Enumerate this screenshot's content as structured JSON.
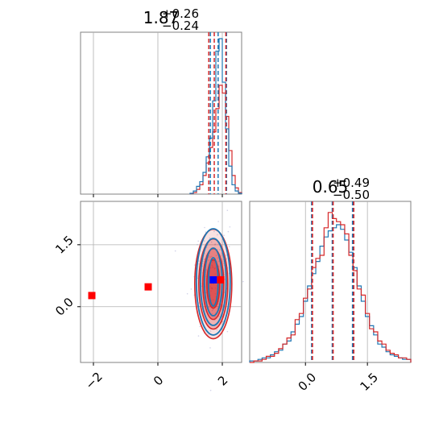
{
  "chart_data": [
    {
      "type": "histogram",
      "panel": "marginal parameter 1",
      "title_value": "1.87",
      "title_upper": "+0.26",
      "title_lower": "−0.24",
      "x_range": [
        -2.4,
        2.6
      ],
      "grid": true,
      "ticks_x": [
        -2,
        0,
        2
      ],
      "blue_quantiles": [
        1.63,
        1.87,
        2.13
      ],
      "red_quantiles": [
        1.58,
        1.75,
        2.11
      ],
      "bins_x": [
        1.05,
        1.15,
        1.25,
        1.35,
        1.45,
        1.55,
        1.65,
        1.75,
        1.85,
        1.95,
        2.05,
        2.15,
        2.25,
        2.35,
        2.45,
        2.55
      ],
      "blue_counts": [
        0.5,
        2,
        5,
        8,
        14,
        24,
        36,
        60,
        92,
        100,
        72,
        42,
        18,
        6,
        2,
        0.5
      ],
      "red_counts": [
        0.3,
        1,
        3,
        6,
        12,
        20,
        30,
        40,
        55,
        70,
        65,
        50,
        28,
        12,
        4,
        1
      ]
    },
    {
      "type": "scatter",
      "panel": "2d posterior",
      "x_range": [
        -2.4,
        2.6
      ],
      "y_range": [
        -1.35,
        2.55
      ],
      "grid": true,
      "ticks_x": [
        "−2",
        "0",
        "2"
      ],
      "ticks_y": [
        "0.0",
        "1.5"
      ],
      "tick_x_values": [
        -2,
        0,
        2
      ],
      "tick_y_values": [
        0.0,
        1.5
      ],
      "blue_contour_center": [
        1.72,
        0.6
      ],
      "red_contour_center": [
        1.72,
        0.55
      ],
      "blue_marker": [
        1.72,
        0.65
      ],
      "red_markers": [
        [
          -2.05,
          0.27
        ],
        [
          -0.3,
          0.48
        ],
        [
          1.95,
          0.65
        ]
      ]
    },
    {
      "type": "histogram",
      "panel": "marginal parameter 2",
      "title_value": "0.65",
      "title_upper": "+0.49",
      "title_lower": "−0.50",
      "x_range": [
        -1.35,
        2.55
      ],
      "grid": true,
      "ticks_x": [
        "0.0",
        "1.5"
      ],
      "tick_x_values": [
        0.0,
        1.5
      ],
      "blue_quantiles": [
        0.15,
        0.65,
        1.14
      ],
      "red_quantiles": [
        0.15,
        0.65,
        1.15
      ],
      "bins_x": [
        -1.3,
        -1.2,
        -1.1,
        -1.0,
        -0.9,
        -0.8,
        -0.7,
        -0.6,
        -0.5,
        -0.4,
        -0.3,
        -0.2,
        -0.1,
        0.0,
        0.1,
        0.2,
        0.3,
        0.4,
        0.5,
        0.6,
        0.7,
        0.8,
        0.9,
        1.0,
        1.1,
        1.2,
        1.3,
        1.4,
        1.5,
        1.6,
        1.7,
        1.8,
        1.9,
        2.0,
        2.1,
        2.2,
        2.3,
        2.4,
        2.5
      ],
      "blue_counts": [
        1,
        1,
        2,
        3,
        3,
        5,
        7,
        8,
        12,
        14,
        20,
        25,
        30,
        40,
        50,
        58,
        66,
        76,
        82,
        86,
        88,
        90,
        87,
        80,
        72,
        62,
        50,
        40,
        30,
        24,
        18,
        12,
        10,
        7,
        5,
        4,
        3,
        2,
        2
      ],
      "red_counts": [
        0,
        1,
        1,
        2,
        4,
        4,
        6,
        9,
        12,
        16,
        18,
        28,
        32,
        42,
        48,
        62,
        68,
        70,
        88,
        98,
        94,
        92,
        90,
        84,
        70,
        60,
        48,
        44,
        32,
        22,
        20,
        14,
        12,
        8,
        6,
        5,
        3,
        3,
        2
      ]
    }
  ],
  "colors": {
    "blue": "#1f77b4",
    "red": "#d62728",
    "marker_blue": "#0000ff",
    "marker_red": "#ff0000",
    "grid": "#b0b0b0",
    "frame": "#808080"
  }
}
